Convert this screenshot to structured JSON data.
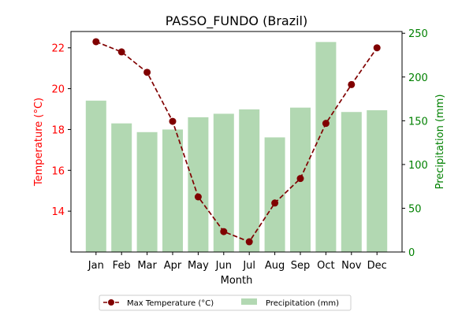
{
  "chart_data": {
    "type": "bar+line",
    "title": "PASSO_FUNDO (Brazil)",
    "xlabel": "Month",
    "categories": [
      "Jan",
      "Feb",
      "Mar",
      "Apr",
      "May",
      "Jun",
      "Jul",
      "Aug",
      "Sep",
      "Oct",
      "Nov",
      "Dec"
    ],
    "left_axis": {
      "label": "Temperature (°C)",
      "ylim": [
        12.0,
        22.8
      ],
      "ticks": [
        "14",
        "16",
        "18",
        "20",
        "22"
      ],
      "color": "#ff0000"
    },
    "right_axis": {
      "label": "Precipitation (mm)",
      "ylim": [
        0,
        252
      ],
      "ticks": [
        "0",
        "50",
        "100",
        "150",
        "200",
        "250"
      ],
      "color": "#008000"
    },
    "series": [
      {
        "name": "Max Temperature (°C)",
        "kind": "line",
        "axis": "left",
        "color": "#800000",
        "values": [
          22.3,
          21.8,
          20.8,
          18.4,
          14.7,
          13.0,
          12.5,
          14.4,
          15.6,
          18.3,
          20.2,
          22.0
        ]
      },
      {
        "name": "Precipitation (mm)",
        "kind": "bar",
        "axis": "right",
        "color": "#b2d8b2",
        "values": [
          173,
          147,
          137,
          140,
          154,
          158,
          163,
          131,
          165,
          240,
          160,
          162
        ]
      }
    ],
    "legend": {
      "position": "bottom-center",
      "entries": [
        "Max Temperature (°C)",
        "Precipitation (mm)"
      ]
    }
  }
}
